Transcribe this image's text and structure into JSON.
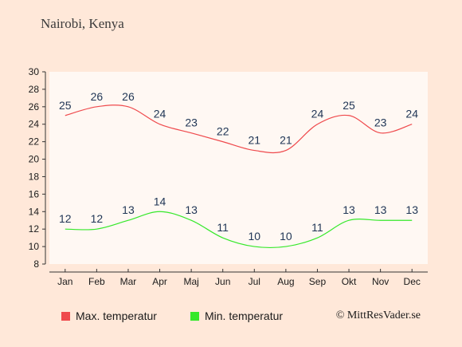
{
  "title": "Nairobi, Kenya",
  "credit": "© MittResVader.se",
  "chart_data": {
    "type": "line",
    "categories": [
      "Jan",
      "Feb",
      "Mar",
      "Apr",
      "Maj",
      "Jun",
      "Jul",
      "Aug",
      "Sep",
      "Okt",
      "Nov",
      "Dec"
    ],
    "series": [
      {
        "name": "Max. temperatur",
        "color": "#ef4a4d",
        "values": [
          25,
          26,
          26,
          24,
          23,
          22,
          21,
          21,
          24,
          25,
          23,
          24
        ]
      },
      {
        "name": "Min. temperatur",
        "color": "#35e82a",
        "values": [
          12,
          12,
          13,
          14,
          13,
          11,
          10,
          10,
          11,
          13,
          13,
          13
        ]
      }
    ],
    "yticks": [
      8,
      10,
      12,
      14,
      16,
      18,
      20,
      22,
      24,
      26,
      28,
      30
    ],
    "ylim": [
      8,
      30
    ],
    "grid": false,
    "legend": "bottom-left"
  }
}
